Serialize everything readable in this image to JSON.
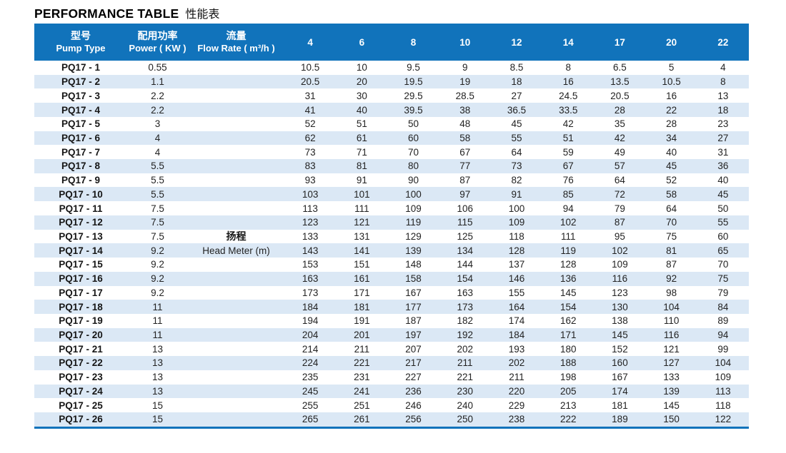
{
  "title": {
    "en": "PERFORMANCE TABLE",
    "zh": "性能表"
  },
  "colors": {
    "header_bg": "#1173bb",
    "stripe": "#dbe8f5",
    "bottom_border": "#1173bb",
    "text": "#232323"
  },
  "table": {
    "header": {
      "pump_type": {
        "zh": "型号",
        "en": "Pump Type"
      },
      "power": {
        "zh": "配用功率",
        "en": "Power ( KW )"
      },
      "flow_rate": {
        "zh": "流量",
        "en": "Flow Rate ( m³/h )"
      },
      "flow_values": [
        "4",
        "6",
        "8",
        "10",
        "12",
        "14",
        "17",
        "20",
        "22"
      ]
    },
    "head_label": {
      "zh": "扬程",
      "en": "Head Meter (m)"
    },
    "rows": [
      {
        "pump_type": "PQ17 - 1",
        "power": "0.55",
        "heads": [
          "10.5",
          "10",
          "9.5",
          "9",
          "8.5",
          "8",
          "6.5",
          "5",
          "4"
        ]
      },
      {
        "pump_type": "PQ17 - 2",
        "power": "1.1",
        "heads": [
          "20.5",
          "20",
          "19.5",
          "19",
          "18",
          "16",
          "13.5",
          "10.5",
          "8"
        ]
      },
      {
        "pump_type": "PQ17 - 3",
        "power": "2.2",
        "heads": [
          "31",
          "30",
          "29.5",
          "28.5",
          "27",
          "24.5",
          "20.5",
          "16",
          "13"
        ]
      },
      {
        "pump_type": "PQ17 - 4",
        "power": "2.2",
        "heads": [
          "41",
          "40",
          "39.5",
          "38",
          "36.5",
          "33.5",
          "28",
          "22",
          "18"
        ]
      },
      {
        "pump_type": "PQ17 - 5",
        "power": "3",
        "heads": [
          "52",
          "51",
          "50",
          "48",
          "45",
          "42",
          "35",
          "28",
          "23"
        ]
      },
      {
        "pump_type": "PQ17 - 6",
        "power": "4",
        "heads": [
          "62",
          "61",
          "60",
          "58",
          "55",
          "51",
          "42",
          "34",
          "27"
        ]
      },
      {
        "pump_type": "PQ17 - 7",
        "power": "4",
        "heads": [
          "73",
          "71",
          "70",
          "67",
          "64",
          "59",
          "49",
          "40",
          "31"
        ]
      },
      {
        "pump_type": "PQ17 - 8",
        "power": "5.5",
        "heads": [
          "83",
          "81",
          "80",
          "77",
          "73",
          "67",
          "57",
          "45",
          "36"
        ]
      },
      {
        "pump_type": "PQ17 - 9",
        "power": "5.5",
        "heads": [
          "93",
          "91",
          "90",
          "87",
          "82",
          "76",
          "64",
          "52",
          "40"
        ]
      },
      {
        "pump_type": "PQ17 - 10",
        "power": "5.5",
        "heads": [
          "103",
          "101",
          "100",
          "97",
          "91",
          "85",
          "72",
          "58",
          "45"
        ]
      },
      {
        "pump_type": "PQ17 - 11",
        "power": "7.5",
        "heads": [
          "113",
          "111",
          "109",
          "106",
          "100",
          "94",
          "79",
          "64",
          "50"
        ]
      },
      {
        "pump_type": "PQ17 - 12",
        "power": "7.5",
        "heads": [
          "123",
          "121",
          "119",
          "115",
          "109",
          "102",
          "87",
          "70",
          "55"
        ]
      },
      {
        "pump_type": "PQ17 - 13",
        "power": "7.5",
        "heads": [
          "133",
          "131",
          "129",
          "125",
          "118",
          "111",
          "95",
          "75",
          "60"
        ]
      },
      {
        "pump_type": "PQ17 - 14",
        "power": "9.2",
        "heads": [
          "143",
          "141",
          "139",
          "134",
          "128",
          "119",
          "102",
          "81",
          "65"
        ]
      },
      {
        "pump_type": "PQ17 - 15",
        "power": "9.2",
        "heads": [
          "153",
          "151",
          "148",
          "144",
          "137",
          "128",
          "109",
          "87",
          "70"
        ]
      },
      {
        "pump_type": "PQ17 - 16",
        "power": "9.2",
        "heads": [
          "163",
          "161",
          "158",
          "154",
          "146",
          "136",
          "116",
          "92",
          "75"
        ]
      },
      {
        "pump_type": "PQ17 - 17",
        "power": "9.2",
        "heads": [
          "173",
          "171",
          "167",
          "163",
          "155",
          "145",
          "123",
          "98",
          "79"
        ]
      },
      {
        "pump_type": "PQ17 - 18",
        "power": "11",
        "heads": [
          "184",
          "181",
          "177",
          "173",
          "164",
          "154",
          "130",
          "104",
          "84"
        ]
      },
      {
        "pump_type": "PQ17 - 19",
        "power": "11",
        "heads": [
          "194",
          "191",
          "187",
          "182",
          "174",
          "162",
          "138",
          "110",
          "89"
        ]
      },
      {
        "pump_type": "PQ17 - 20",
        "power": "11",
        "heads": [
          "204",
          "201",
          "197",
          "192",
          "184",
          "171",
          "145",
          "116",
          "94"
        ]
      },
      {
        "pump_type": "PQ17 - 21",
        "power": "13",
        "heads": [
          "214",
          "211",
          "207",
          "202",
          "193",
          "180",
          "152",
          "121",
          "99"
        ]
      },
      {
        "pump_type": "PQ17 - 22",
        "power": "13",
        "heads": [
          "224",
          "221",
          "217",
          "211",
          "202",
          "188",
          "160",
          "127",
          "104"
        ]
      },
      {
        "pump_type": "PQ17 - 23",
        "power": "13",
        "heads": [
          "235",
          "231",
          "227",
          "221",
          "211",
          "198",
          "167",
          "133",
          "109"
        ]
      },
      {
        "pump_type": "PQ17 - 24",
        "power": "13",
        "heads": [
          "245",
          "241",
          "236",
          "230",
          "220",
          "205",
          "174",
          "139",
          "113"
        ]
      },
      {
        "pump_type": "PQ17 - 25",
        "power": "15",
        "heads": [
          "255",
          "251",
          "246",
          "240",
          "229",
          "213",
          "181",
          "145",
          "118"
        ]
      },
      {
        "pump_type": "PQ17 - 26",
        "power": "15",
        "heads": [
          "265",
          "261",
          "256",
          "250",
          "238",
          "222",
          "189",
          "150",
          "122"
        ]
      }
    ]
  }
}
